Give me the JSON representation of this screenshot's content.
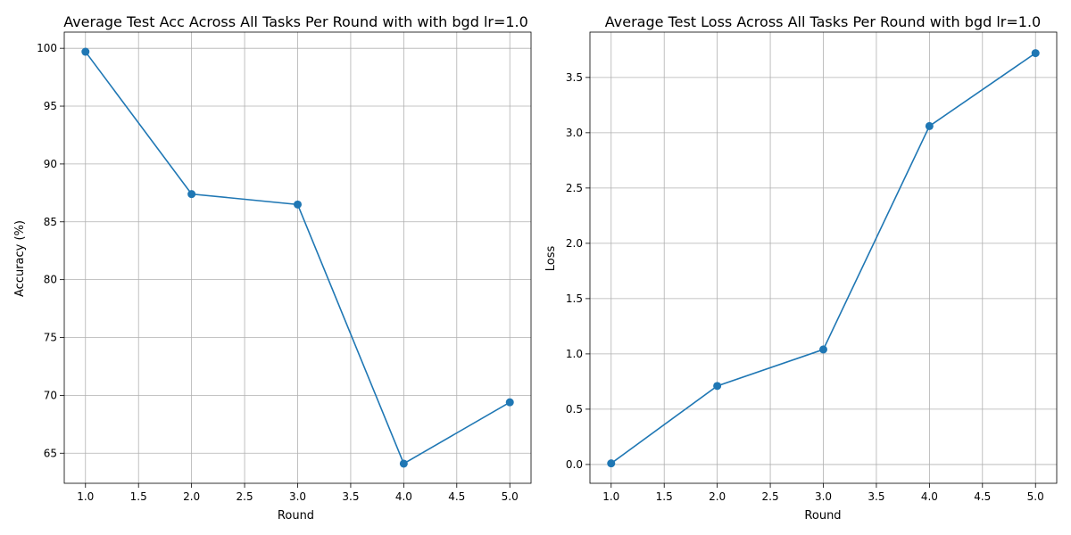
{
  "chart_data": [
    {
      "type": "line",
      "title": "Average Test Acc Across All Tasks Per Round with with bgd lr=1.0",
      "xlabel": "Round",
      "ylabel": "Accuracy (%)",
      "xlim": [
        0.8,
        5.2
      ],
      "ylim": [
        62.4,
        101.4
      ],
      "xticks": [
        1.0,
        1.5,
        2.0,
        2.5,
        3.0,
        3.5,
        4.0,
        4.5,
        5.0
      ],
      "xtick_labels": [
        "1.0",
        "1.5",
        "2.0",
        "2.5",
        "3.0",
        "3.5",
        "4.0",
        "4.5",
        "5.0"
      ],
      "yticks": [
        65,
        70,
        75,
        80,
        85,
        90,
        95,
        100
      ],
      "ytick_labels": [
        "65",
        "70",
        "75",
        "80",
        "85",
        "90",
        "95",
        "100"
      ],
      "grid": true,
      "marker": "circle",
      "color": "#1f77b4",
      "x": [
        1,
        2,
        3,
        4,
        5
      ],
      "y": [
        99.7,
        87.4,
        86.5,
        64.1,
        69.4
      ]
    },
    {
      "type": "line",
      "title": "Average Test Loss Across All Tasks Per Round with bgd lr=1.0",
      "xlabel": "Round",
      "ylabel": "Loss",
      "xlim": [
        0.8,
        5.2
      ],
      "ylim": [
        -0.17,
        3.91
      ],
      "xticks": [
        1.0,
        1.5,
        2.0,
        2.5,
        3.0,
        3.5,
        4.0,
        4.5,
        5.0
      ],
      "xtick_labels": [
        "1.0",
        "1.5",
        "2.0",
        "2.5",
        "3.0",
        "3.5",
        "4.0",
        "4.5",
        "5.0"
      ],
      "yticks": [
        0.0,
        0.5,
        1.0,
        1.5,
        2.0,
        2.5,
        3.0,
        3.5
      ],
      "ytick_labels": [
        "0.0",
        "0.5",
        "1.0",
        "1.5",
        "2.0",
        "2.5",
        "3.0",
        "3.5"
      ],
      "grid": true,
      "marker": "circle",
      "color": "#1f77b4",
      "x": [
        1,
        2,
        3,
        4,
        5
      ],
      "y": [
        0.01,
        0.71,
        1.04,
        3.06,
        3.72
      ]
    }
  ]
}
